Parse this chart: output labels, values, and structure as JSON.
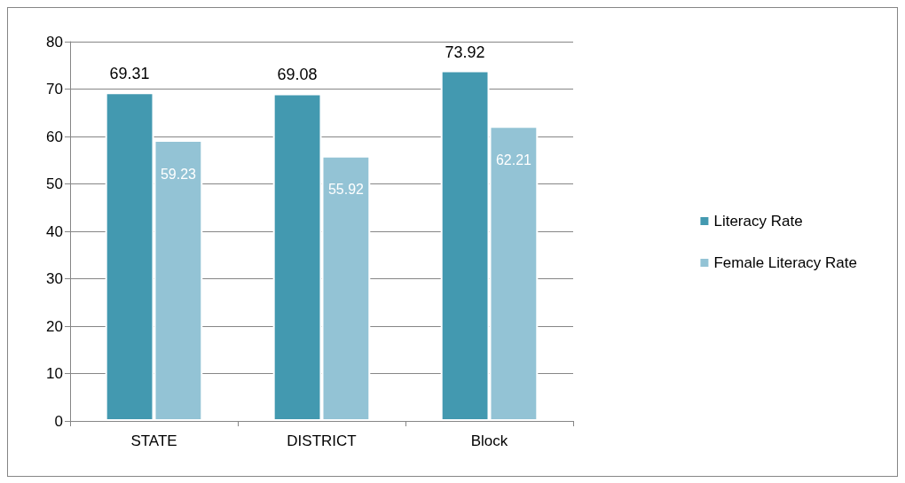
{
  "chart_data": {
    "type": "bar",
    "categories": [
      "STATE",
      "DISTRICT",
      "Block"
    ],
    "series": [
      {
        "name": "Literacy Rate",
        "color": "#4399b0",
        "values": [
          69.31,
          69.08,
          73.92
        ]
      },
      {
        "name": "Female Literacy Rate",
        "color": "#93c3d5",
        "values": [
          59.23,
          55.92,
          62.21
        ]
      }
    ],
    "ylim": [
      0,
      80
    ],
    "yticks": [
      0,
      10,
      20,
      30,
      40,
      50,
      60,
      70,
      80
    ],
    "grid": "y",
    "legend": "right",
    "data_labels": true
  }
}
